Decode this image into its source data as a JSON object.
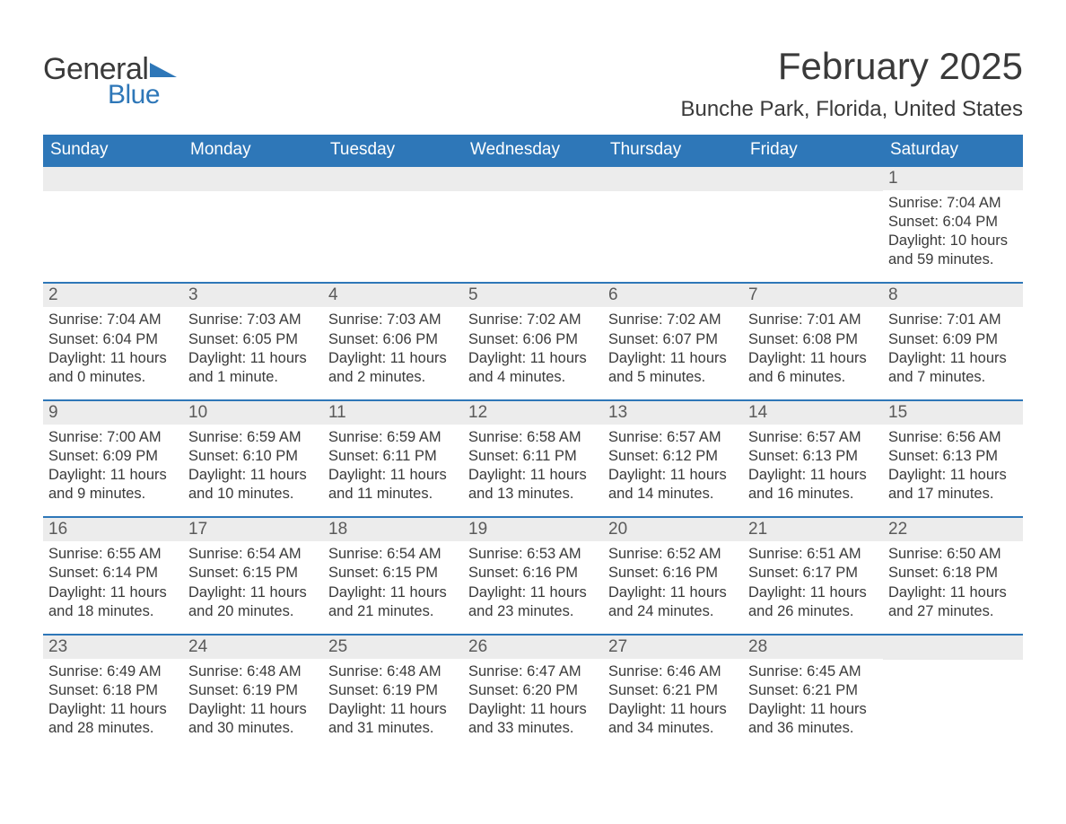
{
  "logo": {
    "line1": "General",
    "line2": "Blue",
    "tri_color": "#2e77b8"
  },
  "title": "February 2025",
  "location": "Bunche Park, Florida, United States",
  "colors": {
    "header_bg": "#2e77b8",
    "header_text": "#ffffff",
    "week_border": "#2e77b8",
    "daynum_bg": "#ececec",
    "body_text": "#3a3a3a",
    "page_bg": "#ffffff"
  },
  "typography": {
    "title_fontsize": 42,
    "location_fontsize": 24,
    "dow_fontsize": 19,
    "daynum_fontsize": 19,
    "body_fontsize": 16.5
  },
  "layout": {
    "columns": 7,
    "rows": 5,
    "first_day_column": 6
  },
  "days_of_week": [
    "Sunday",
    "Monday",
    "Tuesday",
    "Wednesday",
    "Thursday",
    "Friday",
    "Saturday"
  ],
  "weeks": [
    [
      null,
      null,
      null,
      null,
      null,
      null,
      {
        "n": "1",
        "sunrise": "Sunrise: 7:04 AM",
        "sunset": "Sunset: 6:04 PM",
        "daylight": "Daylight: 10 hours and 59 minutes."
      }
    ],
    [
      {
        "n": "2",
        "sunrise": "Sunrise: 7:04 AM",
        "sunset": "Sunset: 6:04 PM",
        "daylight": "Daylight: 11 hours and 0 minutes."
      },
      {
        "n": "3",
        "sunrise": "Sunrise: 7:03 AM",
        "sunset": "Sunset: 6:05 PM",
        "daylight": "Daylight: 11 hours and 1 minute."
      },
      {
        "n": "4",
        "sunrise": "Sunrise: 7:03 AM",
        "sunset": "Sunset: 6:06 PM",
        "daylight": "Daylight: 11 hours and 2 minutes."
      },
      {
        "n": "5",
        "sunrise": "Sunrise: 7:02 AM",
        "sunset": "Sunset: 6:06 PM",
        "daylight": "Daylight: 11 hours and 4 minutes."
      },
      {
        "n": "6",
        "sunrise": "Sunrise: 7:02 AM",
        "sunset": "Sunset: 6:07 PM",
        "daylight": "Daylight: 11 hours and 5 minutes."
      },
      {
        "n": "7",
        "sunrise": "Sunrise: 7:01 AM",
        "sunset": "Sunset: 6:08 PM",
        "daylight": "Daylight: 11 hours and 6 minutes."
      },
      {
        "n": "8",
        "sunrise": "Sunrise: 7:01 AM",
        "sunset": "Sunset: 6:09 PM",
        "daylight": "Daylight: 11 hours and 7 minutes."
      }
    ],
    [
      {
        "n": "9",
        "sunrise": "Sunrise: 7:00 AM",
        "sunset": "Sunset: 6:09 PM",
        "daylight": "Daylight: 11 hours and 9 minutes."
      },
      {
        "n": "10",
        "sunrise": "Sunrise: 6:59 AM",
        "sunset": "Sunset: 6:10 PM",
        "daylight": "Daylight: 11 hours and 10 minutes."
      },
      {
        "n": "11",
        "sunrise": "Sunrise: 6:59 AM",
        "sunset": "Sunset: 6:11 PM",
        "daylight": "Daylight: 11 hours and 11 minutes."
      },
      {
        "n": "12",
        "sunrise": "Sunrise: 6:58 AM",
        "sunset": "Sunset: 6:11 PM",
        "daylight": "Daylight: 11 hours and 13 minutes."
      },
      {
        "n": "13",
        "sunrise": "Sunrise: 6:57 AM",
        "sunset": "Sunset: 6:12 PM",
        "daylight": "Daylight: 11 hours and 14 minutes."
      },
      {
        "n": "14",
        "sunrise": "Sunrise: 6:57 AM",
        "sunset": "Sunset: 6:13 PM",
        "daylight": "Daylight: 11 hours and 16 minutes."
      },
      {
        "n": "15",
        "sunrise": "Sunrise: 6:56 AM",
        "sunset": "Sunset: 6:13 PM",
        "daylight": "Daylight: 11 hours and 17 minutes."
      }
    ],
    [
      {
        "n": "16",
        "sunrise": "Sunrise: 6:55 AM",
        "sunset": "Sunset: 6:14 PM",
        "daylight": "Daylight: 11 hours and 18 minutes."
      },
      {
        "n": "17",
        "sunrise": "Sunrise: 6:54 AM",
        "sunset": "Sunset: 6:15 PM",
        "daylight": "Daylight: 11 hours and 20 minutes."
      },
      {
        "n": "18",
        "sunrise": "Sunrise: 6:54 AM",
        "sunset": "Sunset: 6:15 PM",
        "daylight": "Daylight: 11 hours and 21 minutes."
      },
      {
        "n": "19",
        "sunrise": "Sunrise: 6:53 AM",
        "sunset": "Sunset: 6:16 PM",
        "daylight": "Daylight: 11 hours and 23 minutes."
      },
      {
        "n": "20",
        "sunrise": "Sunrise: 6:52 AM",
        "sunset": "Sunset: 6:16 PM",
        "daylight": "Daylight: 11 hours and 24 minutes."
      },
      {
        "n": "21",
        "sunrise": "Sunrise: 6:51 AM",
        "sunset": "Sunset: 6:17 PM",
        "daylight": "Daylight: 11 hours and 26 minutes."
      },
      {
        "n": "22",
        "sunrise": "Sunrise: 6:50 AM",
        "sunset": "Sunset: 6:18 PM",
        "daylight": "Daylight: 11 hours and 27 minutes."
      }
    ],
    [
      {
        "n": "23",
        "sunrise": "Sunrise: 6:49 AM",
        "sunset": "Sunset: 6:18 PM",
        "daylight": "Daylight: 11 hours and 28 minutes."
      },
      {
        "n": "24",
        "sunrise": "Sunrise: 6:48 AM",
        "sunset": "Sunset: 6:19 PM",
        "daylight": "Daylight: 11 hours and 30 minutes."
      },
      {
        "n": "25",
        "sunrise": "Sunrise: 6:48 AM",
        "sunset": "Sunset: 6:19 PM",
        "daylight": "Daylight: 11 hours and 31 minutes."
      },
      {
        "n": "26",
        "sunrise": "Sunrise: 6:47 AM",
        "sunset": "Sunset: 6:20 PM",
        "daylight": "Daylight: 11 hours and 33 minutes."
      },
      {
        "n": "27",
        "sunrise": "Sunrise: 6:46 AM",
        "sunset": "Sunset: 6:21 PM",
        "daylight": "Daylight: 11 hours and 34 minutes."
      },
      {
        "n": "28",
        "sunrise": "Sunrise: 6:45 AM",
        "sunset": "Sunset: 6:21 PM",
        "daylight": "Daylight: 11 hours and 36 minutes."
      },
      null
    ]
  ]
}
